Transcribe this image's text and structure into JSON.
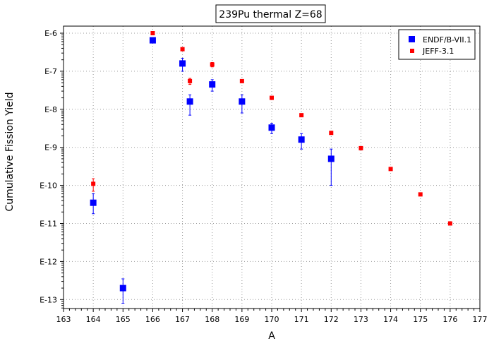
{
  "chart_data": {
    "type": "scatter",
    "title": "239Pu thermal Z=68",
    "xlabel": "A",
    "ylabel": "Cumulative Fission Yield",
    "xlim": [
      163,
      177
    ],
    "y_scale": "log",
    "ylim": [
      1.5e-14,
      1.2e-06
    ],
    "x_ticks": [
      "163",
      "164",
      "165",
      "166",
      "167",
      "168",
      "169",
      "170",
      "171",
      "172",
      "173",
      "174",
      "175",
      "176",
      "177"
    ],
    "y_ticks": [
      {
        "value": 1e-06,
        "label": "E-6"
      },
      {
        "value": 1e-07,
        "label": "E-7"
      },
      {
        "value": 1e-08,
        "label": "E-8"
      },
      {
        "value": 1e-09,
        "label": "E-9"
      },
      {
        "value": 1e-10,
        "label": "E-10"
      },
      {
        "value": 1e-11,
        "label": "E-11"
      },
      {
        "value": 1e-12,
        "label": "E-12"
      },
      {
        "value": 1e-13,
        "label": "E-13"
      }
    ],
    "grid": true,
    "legend_position": "top-right",
    "series": [
      {
        "name": "ENDF/B-VII.1",
        "color": "#0000ff",
        "marker": "square-large",
        "points": [
          {
            "x": 164,
            "y": 3.5e-11,
            "ylo": 1.8e-11,
            "yhi": 6e-11
          },
          {
            "x": 165,
            "y": 2e-13,
            "ylo": 8e-14,
            "yhi": 3.5e-13
          },
          {
            "x": 166,
            "y": 6.5e-07
          },
          {
            "x": 167,
            "y": 1.6e-07,
            "ylo": 1e-07,
            "yhi": 2.2e-07
          },
          {
            "x": 167.25,
            "y": 1.6e-08,
            "ylo": 7e-09,
            "yhi": 2.4e-08
          },
          {
            "x": 168,
            "y": 4.5e-08,
            "ylo": 3e-08,
            "yhi": 6e-08
          },
          {
            "x": 169,
            "y": 1.6e-08,
            "ylo": 8e-09,
            "yhi": 2.4e-08
          },
          {
            "x": 170,
            "y": 3.3e-09,
            "ylo": 2.3e-09,
            "yhi": 4.3e-09
          },
          {
            "x": 171,
            "y": 1.6e-09,
            "ylo": 9e-10,
            "yhi": 2.3e-09
          },
          {
            "x": 172,
            "y": 5e-10,
            "ylo": 1e-10,
            "yhi": 9e-10
          }
        ]
      },
      {
        "name": "JEFF-3.1",
        "color": "#ff0000",
        "marker": "square-small",
        "points": [
          {
            "x": 164,
            "y": 1.1e-10,
            "ylo": 7e-11,
            "yhi": 1.5e-10
          },
          {
            "x": 166,
            "y": 1e-06
          },
          {
            "x": 167,
            "y": 3.8e-07
          },
          {
            "x": 167.25,
            "y": 5.5e-08,
            "ylo": 4.5e-08,
            "yhi": 6.5e-08
          },
          {
            "x": 168,
            "y": 1.5e-07,
            "ylo": 1.3e-07,
            "yhi": 1.7e-07
          },
          {
            "x": 169,
            "y": 5.5e-08
          },
          {
            "x": 170,
            "y": 2e-08
          },
          {
            "x": 171,
            "y": 7e-09
          },
          {
            "x": 172,
            "y": 2.4e-09
          },
          {
            "x": 173,
            "y": 9.5e-10
          },
          {
            "x": 174,
            "y": 2.7e-10
          },
          {
            "x": 175,
            "y": 5.8e-11
          },
          {
            "x": 176,
            "y": 1e-11
          }
        ]
      }
    ]
  }
}
